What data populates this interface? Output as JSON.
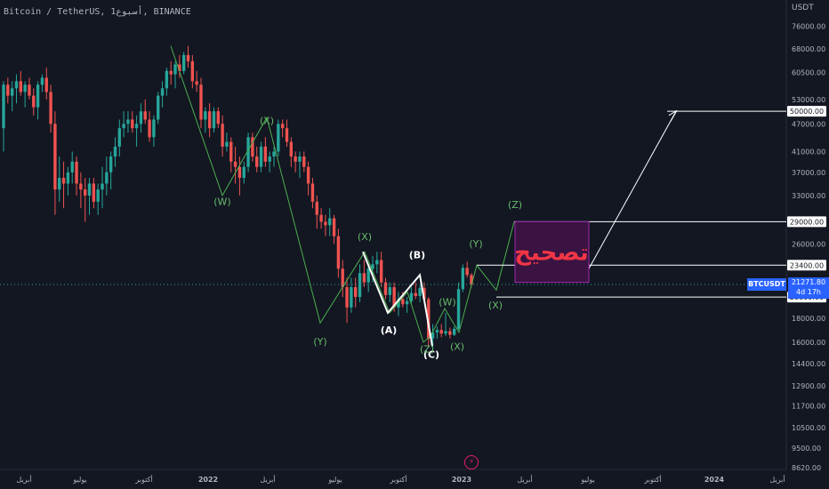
{
  "header": {
    "title": "Bitcoin / TetherUS, 1أسبوع, BINANCE",
    "unit": "USDT",
    "symbol_badge": "BTCUSDT",
    "last_price": "21271.80",
    "countdown": "4d 17h"
  },
  "colors": {
    "background": "#131722",
    "up": "#26a69a",
    "down": "#ef5350",
    "wave": "#4caf50",
    "wave_label": "#66bb6a",
    "white_line": "#ffffff",
    "box_fill": "#3b1342",
    "box_border": "#9c27b0",
    "box_text": "#f23645",
    "price_badge": "#2962ff",
    "axis_text": "#b2b5be",
    "grid": "#1e222d"
  },
  "chart_data": {
    "type": "candlestick",
    "scale": "log",
    "ylim": [
      8620,
      80000
    ],
    "y_ticks": [
      "76000.00",
      "68000.00",
      "60500.00",
      "53000.00",
      "47000.00",
      "41000.00",
      "37000.00",
      "33000.00",
      "26000.00",
      "18000.00",
      "16000.00",
      "14400.00",
      "12900.00",
      "11700.00",
      "10500.00",
      "9500.00",
      "8620.00"
    ],
    "price_labels": [
      "50000.00",
      "29000.00",
      "23400.00",
      "21271.80",
      "20000.00"
    ],
    "x_labels": [
      "أبريل",
      "يوليو",
      "أكتوبر",
      "2022",
      "أبريل",
      "يوليو",
      "أكتوبر",
      "2023",
      "أبريل",
      "يوليو",
      "أكتوبر",
      "2024",
      "أبريل"
    ],
    "candles": [
      [
        46000,
        58000,
        41000,
        57000
      ],
      [
        57000,
        59000,
        52000,
        54000
      ],
      [
        54000,
        58000,
        50000,
        56000
      ],
      [
        56000,
        60000,
        52000,
        58000
      ],
      [
        58000,
        61000,
        54000,
        55000
      ],
      [
        55000,
        58000,
        51000,
        57000
      ],
      [
        57000,
        59000,
        53000,
        54000
      ],
      [
        54000,
        56000,
        49000,
        51000
      ],
      [
        51000,
        58000,
        48000,
        57000
      ],
      [
        57000,
        60000,
        55000,
        59000
      ],
      [
        59000,
        62000,
        53000,
        55000
      ],
      [
        55000,
        57000,
        45000,
        47000
      ],
      [
        47000,
        50000,
        30000,
        34000
      ],
      [
        34000,
        40000,
        32000,
        36000
      ],
      [
        36000,
        39000,
        31000,
        35000
      ],
      [
        35000,
        38000,
        33000,
        37000
      ],
      [
        37000,
        41000,
        35000,
        39000
      ],
      [
        39000,
        40000,
        33000,
        35000
      ],
      [
        35000,
        37000,
        31000,
        34000
      ],
      [
        34000,
        36000,
        29000,
        33000
      ],
      [
        33000,
        36000,
        30000,
        35000
      ],
      [
        35000,
        36000,
        31000,
        32000
      ],
      [
        32000,
        35000,
        30000,
        34000
      ],
      [
        34000,
        38000,
        31000,
        35000
      ],
      [
        35000,
        40000,
        33000,
        37000
      ],
      [
        37000,
        41000,
        34000,
        40000
      ],
      [
        40000,
        44000,
        38000,
        42000
      ],
      [
        42000,
        48000,
        40000,
        46000
      ],
      [
        46000,
        50000,
        44000,
        47000
      ],
      [
        47000,
        50000,
        45000,
        48000
      ],
      [
        48000,
        50000,
        45000,
        46000
      ],
      [
        46000,
        49000,
        42000,
        47000
      ],
      [
        47000,
        52000,
        45000,
        50000
      ],
      [
        50000,
        53000,
        47000,
        48000
      ],
      [
        48000,
        50000,
        43000,
        44000
      ],
      [
        44000,
        49000,
        42000,
        48000
      ],
      [
        48000,
        55000,
        47000,
        54000
      ],
      [
        54000,
        58000,
        51000,
        56000
      ],
      [
        56000,
        62000,
        54000,
        61000
      ],
      [
        61000,
        64000,
        57000,
        60000
      ],
      [
        60000,
        64000,
        56000,
        63000
      ],
      [
        63000,
        66000,
        59000,
        61000
      ],
      [
        61000,
        67000,
        60000,
        66000
      ],
      [
        66000,
        69000,
        62000,
        64000
      ],
      [
        64000,
        66000,
        56000,
        58000
      ],
      [
        58000,
        61000,
        55000,
        57000
      ],
      [
        57000,
        59000,
        46000,
        48000
      ],
      [
        48000,
        51000,
        45000,
        50000
      ],
      [
        50000,
        52000,
        44000,
        46000
      ],
      [
        46000,
        51000,
        45000,
        50000
      ],
      [
        50000,
        51000,
        46000,
        47000
      ],
      [
        47000,
        49000,
        40000,
        42000
      ],
      [
        42000,
        45000,
        41000,
        43000
      ],
      [
        43000,
        44000,
        37000,
        39000
      ],
      [
        39000,
        42000,
        35000,
        38000
      ],
      [
        38000,
        40000,
        33000,
        36000
      ],
      [
        36000,
        39000,
        35000,
        38000
      ],
      [
        38000,
        45000,
        37000,
        44000
      ],
      [
        44000,
        45000,
        39000,
        40000
      ],
      [
        40000,
        42000,
        37000,
        38000
      ],
      [
        38000,
        43000,
        37000,
        42000
      ],
      [
        42000,
        44000,
        38000,
        39000
      ],
      [
        39000,
        41000,
        37000,
        40000
      ],
      [
        40000,
        42000,
        38000,
        41000
      ],
      [
        41000,
        48000,
        40000,
        47000
      ],
      [
        47000,
        48000,
        44000,
        46000
      ],
      [
        46000,
        48000,
        42000,
        43000
      ],
      [
        43000,
        44000,
        38000,
        40000
      ],
      [
        40000,
        41000,
        37000,
        39000
      ],
      [
        39000,
        41000,
        36000,
        40000
      ],
      [
        40000,
        41000,
        37000,
        38000
      ],
      [
        38000,
        39000,
        33000,
        35000
      ],
      [
        35000,
        36000,
        31000,
        32000
      ],
      [
        32000,
        33000,
        28000,
        30000
      ],
      [
        30000,
        31000,
        28000,
        29000
      ],
      [
        29000,
        30000,
        27000,
        28500
      ],
      [
        28500,
        31000,
        27000,
        29500
      ],
      [
        29500,
        30000,
        26000,
        27000
      ],
      [
        27000,
        28000,
        22000,
        23000
      ],
      [
        23000,
        24000,
        20000,
        21000
      ],
      [
        21000,
        22000,
        17600,
        19000
      ],
      [
        19000,
        22000,
        18500,
        21000
      ],
      [
        21000,
        22000,
        19000,
        20000
      ],
      [
        20000,
        23500,
        19500,
        22500
      ],
      [
        22500,
        24000,
        21000,
        21500
      ],
      [
        21500,
        23500,
        20500,
        23000
      ],
      [
        23000,
        24500,
        21500,
        23500
      ],
      [
        23500,
        25000,
        22500,
        24000
      ],
      [
        24000,
        25000,
        21000,
        21500
      ],
      [
        21500,
        22000,
        19800,
        20200
      ],
      [
        20200,
        21500,
        19500,
        21000
      ],
      [
        21000,
        21500,
        18600,
        19000
      ],
      [
        19000,
        20500,
        18200,
        19800
      ],
      [
        19800,
        20500,
        19000,
        19300
      ],
      [
        19300,
        20000,
        18500,
        19600
      ],
      [
        19600,
        21000,
        19300,
        20400
      ],
      [
        20400,
        21500,
        19800,
        20100
      ],
      [
        20100,
        21200,
        19500,
        20900
      ],
      [
        20900,
        21500,
        19500,
        19800
      ],
      [
        19800,
        20000,
        15600,
        16300
      ],
      [
        16300,
        17500,
        15500,
        16800
      ],
      [
        16800,
        17300,
        16300,
        17000
      ],
      [
        17000,
        17500,
        16400,
        16700
      ],
      [
        16700,
        18500,
        16500,
        16900
      ],
      [
        16900,
        17200,
        16300,
        16600
      ],
      [
        16600,
        17300,
        16500,
        17100
      ],
      [
        17100,
        21500,
        17000,
        20800
      ],
      [
        20800,
        23500,
        20500,
        23100
      ],
      [
        23100,
        23800,
        22000,
        22300
      ],
      [
        22300,
        22500,
        21000,
        21271.8
      ]
    ],
    "wave_labels": [
      "(X)",
      "(W)",
      "(Y)",
      "(X)",
      "(A)",
      "(B)",
      "(C)",
      "(Z)",
      "(W)",
      "(X)",
      "(Y)",
      "(X)",
      "(Z)"
    ],
    "box_text": "تصحيح"
  }
}
